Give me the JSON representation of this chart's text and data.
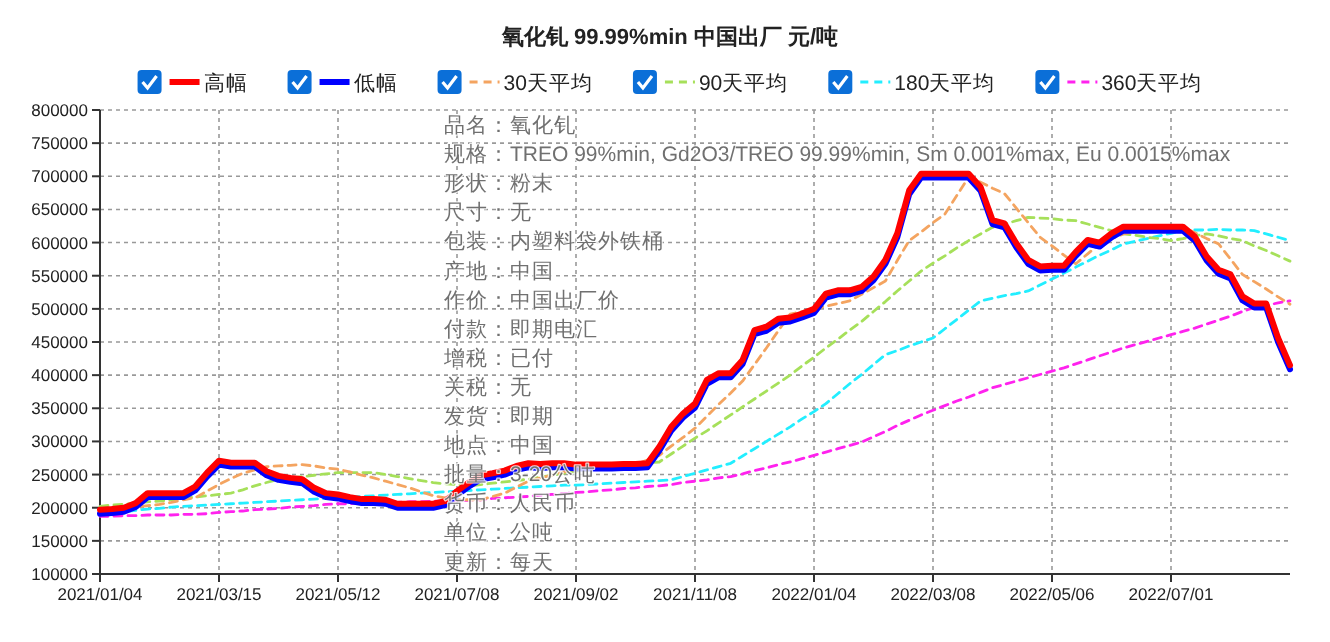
{
  "chart_data": {
    "type": "line",
    "title": "氧化钆 99.99%min 中国出厂 元/吨",
    "categories": [
      "2021/01/04",
      null,
      null,
      null,
      null,
      null,
      null,
      null,
      null,
      null,
      "2021/03/15",
      null,
      null,
      null,
      null,
      null,
      null,
      null,
      null,
      null,
      "2021/05/12",
      null,
      null,
      null,
      null,
      null,
      null,
      null,
      null,
      null,
      "2021/07/08",
      null,
      null,
      null,
      null,
      null,
      null,
      null,
      null,
      null,
      "2021/09/02",
      null,
      null,
      null,
      null,
      null,
      null,
      null,
      null,
      null,
      "2021/11/08",
      null,
      null,
      null,
      null,
      null,
      null,
      null,
      null,
      null,
      "2022/01/04",
      null,
      null,
      null,
      null,
      null,
      null,
      null,
      null,
      null,
      "2022/03/08",
      null,
      null,
      null,
      null,
      null,
      null,
      null,
      null,
      null,
      "2022/05/06",
      null,
      null,
      null,
      null,
      null,
      null,
      null,
      null,
      null,
      "2022/07/01",
      null,
      null,
      null,
      null,
      null,
      null,
      null,
      null,
      null,
      null
    ],
    "ylim": [
      100000,
      800000
    ],
    "yticks": [
      100000,
      150000,
      200000,
      250000,
      300000,
      350000,
      400000,
      450000,
      500000,
      550000,
      600000,
      650000,
      700000,
      750000,
      800000
    ],
    "grid": true,
    "legend": "top",
    "marker": "none",
    "series": [
      {
        "name": "高幅",
        "color": "#ff0000",
        "line_style": "solid",
        "values": [
          197000,
          198000,
          200000,
          207000,
          222000,
          222000,
          222000,
          222000,
          232000,
          253000,
          271000,
          268000,
          268000,
          268000,
          255000,
          248000,
          245000,
          243000,
          230000,
          222000,
          220000,
          216000,
          213000,
          213000,
          212000,
          206000,
          206000,
          206000,
          206000,
          210000,
          225000,
          238000,
          249000,
          252000,
          256000,
          263000,
          267000,
          266000,
          267000,
          267000,
          265000,
          265000,
          265000,
          265000,
          266000,
          266000,
          267000,
          292000,
          322000,
          342000,
          357000,
          393000,
          403000,
          403000,
          423000,
          468000,
          473000,
          485000,
          487000,
          493000,
          500000,
          523000,
          528000,
          528000,
          533000,
          549000,
          574000,
          614000,
          679000,
          704000,
          704000,
          704000,
          704000,
          704000,
          684000,
          634000,
          629000,
          599000,
          574000,
          564000,
          565000,
          565000,
          586000,
          604000,
          600000,
          614000,
          624000,
          624000,
          624000,
          624000,
          624000,
          624000,
          609000,
          579000,
          559000,
          552000,
          519000,
          508000,
          508000,
          456000,
          415000
        ]
      },
      {
        "name": "低幅",
        "color": "#0000ff",
        "line_style": "solid",
        "values": [
          191000,
          192000,
          194000,
          201000,
          216000,
          216000,
          216000,
          216000,
          226000,
          247000,
          265000,
          262000,
          262000,
          262000,
          249000,
          242000,
          239000,
          237000,
          224000,
          216000,
          214000,
          210000,
          207000,
          207000,
          206000,
          200000,
          200000,
          200000,
          200000,
          204000,
          219000,
          232000,
          243000,
          246000,
          250000,
          257000,
          261000,
          260000,
          261000,
          261000,
          259000,
          259000,
          259000,
          259000,
          260000,
          260000,
          261000,
          286000,
          316000,
          336000,
          351000,
          387000,
          397000,
          397000,
          417000,
          462000,
          467000,
          479000,
          481000,
          487000,
          494000,
          517000,
          522000,
          522000,
          527000,
          543000,
          568000,
          608000,
          673000,
          698000,
          698000,
          698000,
          698000,
          698000,
          678000,
          628000,
          623000,
          593000,
          568000,
          558000,
          559000,
          559000,
          580000,
          598000,
          594000,
          608000,
          618000,
          618000,
          618000,
          618000,
          618000,
          618000,
          603000,
          573000,
          553000,
          546000,
          513000,
          502000,
          502000,
          450000,
          409000
        ]
      },
      {
        "name": "30天平均",
        "color": "#f4a460",
        "line_style": "dashed",
        "values": [
          195000,
          197000,
          199000,
          201000,
          203000,
          205000,
          208000,
          212000,
          215000,
          225000,
          235000,
          244000,
          252000,
          257000,
          262000,
          263000,
          264000,
          265000,
          263000,
          260000,
          258000,
          254000,
          249000,
          245000,
          240000,
          235000,
          230000,
          224000,
          218000,
          215000,
          212000,
          212000,
          212000,
          217000,
          222000,
          231000,
          240000,
          245000,
          249000,
          254000,
          258000,
          259000,
          261000,
          262000,
          264000,
          265000,
          272000,
          279000,
          293000,
          306000,
          320000,
          338000,
          356000,
          373000,
          391000,
          416000,
          441000,
          467000,
          492000,
          496000,
          500000,
          504000,
          508000,
          512000,
          522000,
          532000,
          542000,
          573000,
          603000,
          616000,
          630000,
          643000,
          671000,
          699000,
          691000,
          682000,
          674000,
          652000,
          630000,
          608000,
          595000,
          581000,
          568000,
          583000,
          598000,
          606000,
          613000,
          616000,
          618000,
          621000,
          622000,
          623000,
          615000,
          606000,
          598000,
          575000,
          552000,
          541000,
          530000,
          518000,
          507000
        ]
      },
      {
        "name": "90天平均",
        "color": "#a6e05a",
        "line_style": "dashed",
        "values": [
          202000,
          204000,
          205000,
          207000,
          209000,
          210000,
          212000,
          214000,
          216000,
          218000,
          220000,
          222000,
          227000,
          233000,
          238000,
          243000,
          245000,
          247000,
          249000,
          251000,
          253000,
          253000,
          253000,
          253000,
          250000,
          247000,
          244000,
          241000,
          238000,
          236000,
          235000,
          233000,
          235000,
          237000,
          239000,
          241000,
          243000,
          246000,
          249000,
          252000,
          255000,
          257000,
          259000,
          262000,
          264000,
          266000,
          268000,
          269000,
          281000,
          293000,
          305000,
          316000,
          328000,
          340000,
          352000,
          364000,
          376000,
          388000,
          400000,
          414000,
          427000,
          441000,
          454000,
          468000,
          481000,
          496000,
          511000,
          527000,
          542000,
          557000,
          569000,
          580000,
          592000,
          603000,
          613000,
          623000,
          628000,
          633000,
          638000,
          637000,
          636000,
          634000,
          633000,
          628000,
          623000,
          618000,
          613000,
          611000,
          608000,
          606000,
          603000,
          606000,
          610000,
          613000,
          610000,
          606000,
          603000,
          595000,
          588000,
          580000,
          572000
        ]
      },
      {
        "name": "180天平均",
        "color": "#22eeff",
        "line_style": "dashed",
        "values": [
          191000,
          193000,
          194000,
          196000,
          198000,
          199000,
          201000,
          202000,
          203000,
          204000,
          205000,
          206000,
          207000,
          208000,
          209000,
          210000,
          211000,
          212000,
          213000,
          214000,
          215000,
          216000,
          217000,
          218000,
          219000,
          220000,
          221000,
          222000,
          223000,
          224000,
          225000,
          226000,
          227000,
          228000,
          229000,
          230000,
          231000,
          232000,
          233000,
          234000,
          234000,
          235000,
          236000,
          237000,
          238000,
          239000,
          240000,
          241000,
          242000,
          247000,
          252000,
          257000,
          262000,
          267000,
          278000,
          289000,
          300000,
          311000,
          322000,
          334000,
          345000,
          357000,
          372000,
          387000,
          401000,
          416000,
          431000,
          437000,
          444000,
          450000,
          456000,
          470000,
          484000,
          498000,
          512000,
          516000,
          520000,
          523000,
          527000,
          536000,
          545000,
          554000,
          563000,
          572000,
          581000,
          589000,
          598000,
          602000,
          606000,
          610000,
          614000,
          618000,
          619000,
          619000,
          620000,
          619000,
          619000,
          618000,
          613000,
          608000,
          603000
        ]
      },
      {
        "name": "360天平均",
        "color": "#ff22ee",
        "line_style": "dashed",
        "values": [
          187000,
          187000,
          188000,
          188000,
          189000,
          189000,
          189000,
          190000,
          190000,
          191000,
          193000,
          194000,
          195000,
          197000,
          198000,
          199000,
          201000,
          202000,
          203000,
          205000,
          206000,
          206000,
          207000,
          207000,
          208000,
          208000,
          209000,
          209000,
          210000,
          210000,
          211000,
          211000,
          212000,
          214000,
          215000,
          216000,
          217000,
          219000,
          220000,
          221000,
          223000,
          224000,
          226000,
          227000,
          229000,
          230000,
          232000,
          233000,
          235000,
          238000,
          240000,
          242000,
          245000,
          247000,
          251000,
          256000,
          260000,
          265000,
          269000,
          274000,
          279000,
          284000,
          289000,
          294000,
          299000,
          307000,
          315000,
          324000,
          332000,
          340000,
          347000,
          354000,
          361000,
          367000,
          374000,
          381000,
          386000,
          391000,
          396000,
          401000,
          406000,
          411000,
          417000,
          423000,
          429000,
          435000,
          441000,
          446000,
          451000,
          456000,
          461000,
          466000,
          471000,
          477000,
          483000,
          489000,
          496000,
          502000,
          505000,
          509000,
          512000
        ]
      }
    ],
    "annotations": [
      "品名：氧化钆",
      "规格：TREO 99%min, Gd2O3/TREO 99.99%min, Sm 0.001%max, Eu 0.0015%max",
      "形状：粉末",
      "尺寸：无",
      "包装：内塑料袋外铁桶",
      "产地：中国",
      "作价：中国出厂价",
      "付款：即期电汇",
      "增税：已付",
      "关税：无",
      "发货：即期",
      "地点：中国",
      "批量：3-20公吨",
      "货币：人民币",
      "单位：公吨",
      "更新：每天"
    ]
  }
}
